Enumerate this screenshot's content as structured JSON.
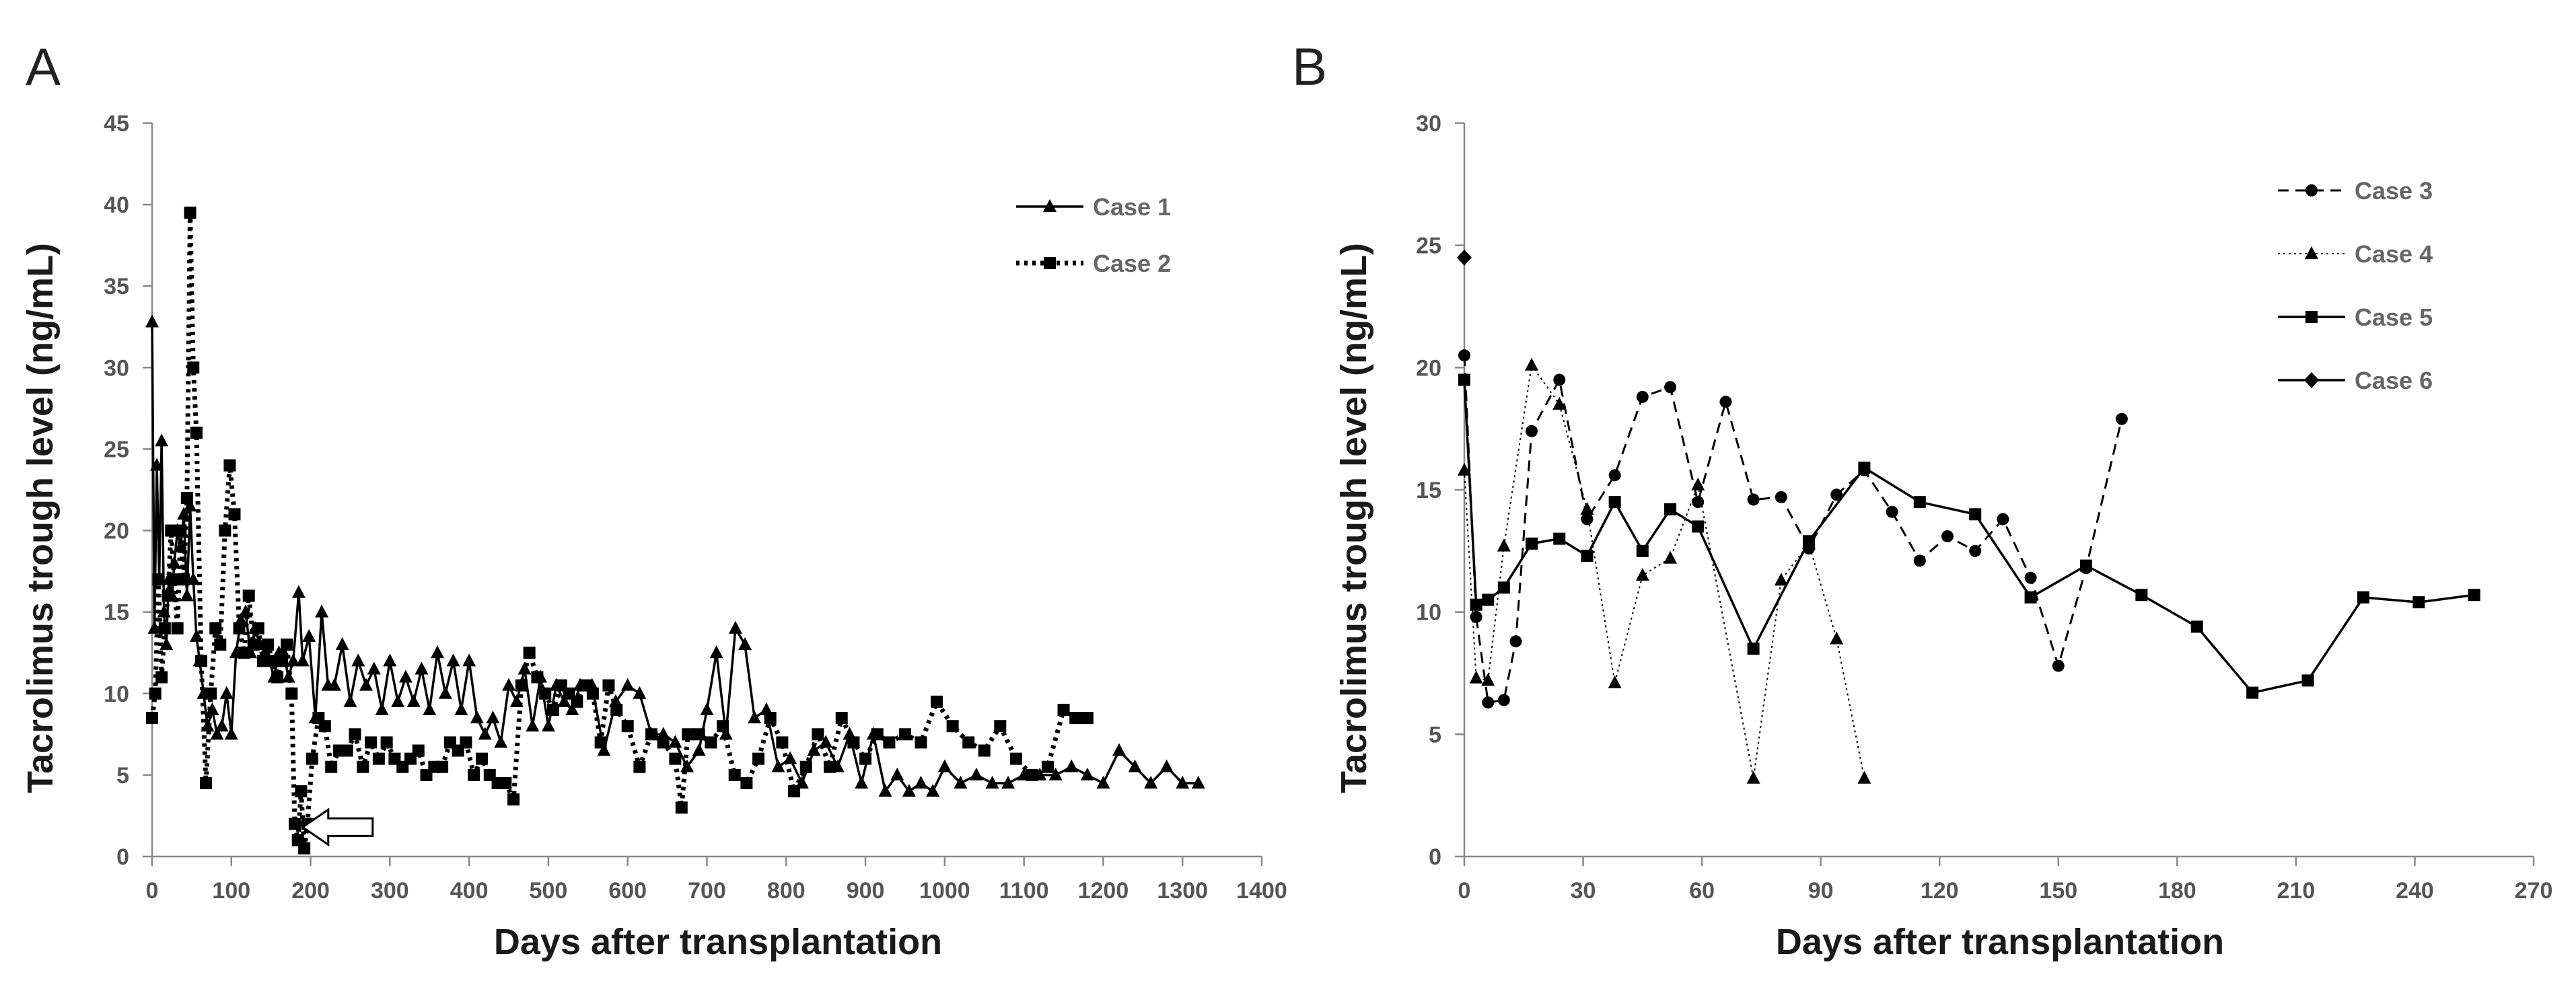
{
  "chart_data": [
    {
      "panel": "A",
      "type": "line",
      "xlabel": "Days after transplantation",
      "ylabel": "Tacrolimus trough level (ng/mL)",
      "xlim": [
        0,
        1400
      ],
      "ylim": [
        0,
        45
      ],
      "xticks": [
        0,
        100,
        200,
        300,
        400,
        500,
        600,
        700,
        800,
        900,
        1000,
        1100,
        1200,
        1300,
        1400
      ],
      "yticks": [
        0,
        5,
        10,
        15,
        20,
        25,
        30,
        35,
        40,
        45
      ],
      "legend_position": "top-right",
      "annotation": "arrow pointing to trough near day 185",
      "series": [
        {
          "name": "Case 1",
          "line": "solid",
          "marker": "triangle",
          "x": [
            0,
            3,
            6,
            9,
            12,
            15,
            18,
            21,
            25,
            28,
            32,
            36,
            40,
            44,
            48,
            52,
            56,
            60,
            65,
            70,
            76,
            82,
            88,
            94,
            100,
            106,
            112,
            118,
            124,
            130,
            136,
            142,
            148,
            154,
            160,
            166,
            172,
            178,
            185,
            190,
            198,
            206,
            214,
            222,
            230,
            240,
            250,
            260,
            270,
            280,
            290,
            300,
            310,
            320,
            330,
            340,
            350,
            360,
            370,
            380,
            390,
            400,
            410,
            420,
            430,
            440,
            450,
            460,
            470,
            480,
            490,
            500,
            510,
            520,
            530,
            540,
            555,
            570,
            585,
            600,
            615,
            630,
            645,
            660,
            675,
            690,
            700,
            712,
            724,
            736,
            748,
            760,
            775,
            790,
            805,
            820,
            835,
            850,
            865,
            880,
            895,
            910,
            925,
            940,
            955,
            970,
            985,
            1000,
            1020,
            1040,
            1060,
            1080,
            1100,
            1120,
            1140,
            1160,
            1180,
            1200,
            1220,
            1240,
            1260,
            1280,
            1300,
            1320
          ],
          "y": [
            32.8,
            14.0,
            24.0,
            17.0,
            25.5,
            15.0,
            13.0,
            17.0,
            16.0,
            18.0,
            20.0,
            19.0,
            21.0,
            16.0,
            21.5,
            17.0,
            13.5,
            12.0,
            10.0,
            8.0,
            9.0,
            7.5,
            8.0,
            10.0,
            7.5,
            12.5,
            14.5,
            15.0,
            12.5,
            14.0,
            13.0,
            12.5,
            12.0,
            11.0,
            12.5,
            12.5,
            11.0,
            12.0,
            16.2,
            12.0,
            13.5,
            8.5,
            15.0,
            10.5,
            10.5,
            13.0,
            9.5,
            12.0,
            10.5,
            11.5,
            9.0,
            12.0,
            9.5,
            11.0,
            9.5,
            11.5,
            9.0,
            12.5,
            10.0,
            12.0,
            9.0,
            12.0,
            8.5,
            7.5,
            8.5,
            7.0,
            10.5,
            9.5,
            11.5,
            8.0,
            11.0,
            8.0,
            10.5,
            9.5,
            9.0,
            10.5,
            10.5,
            6.5,
            9.5,
            10.5,
            10.0,
            7.5,
            7.5,
            7.0,
            5.5,
            6.5,
            9.0,
            12.5,
            7.5,
            14.0,
            13.0,
            8.5,
            9.0,
            5.5,
            6.0,
            4.5,
            6.5,
            7.0,
            5.5,
            7.5,
            4.5,
            7.5,
            4.0,
            5.0,
            4.0,
            4.5,
            4.0,
            5.5,
            4.5,
            5.0,
            4.5,
            4.5,
            5.0,
            5.0,
            5.0,
            5.5,
            5.0,
            4.5,
            6.5,
            5.5,
            4.5,
            5.5,
            4.5,
            4.5
          ]
        },
        {
          "name": "Case 2",
          "line": "dotted",
          "marker": "square",
          "x": [
            0,
            4,
            8,
            12,
            16,
            20,
            24,
            28,
            32,
            36,
            40,
            44,
            48,
            52,
            56,
            62,
            68,
            74,
            80,
            86,
            92,
            98,
            104,
            110,
            116,
            122,
            128,
            134,
            140,
            146,
            152,
            158,
            164,
            170,
            176,
            180,
            184,
            188,
            192,
            196,
            202,
            210,
            218,
            226,
            236,
            246,
            256,
            266,
            276,
            286,
            296,
            306,
            316,
            326,
            336,
            346,
            356,
            366,
            376,
            386,
            396,
            406,
            416,
            426,
            436,
            446,
            456,
            466,
            476,
            486,
            496,
            506,
            516,
            526,
            536,
            546,
            556,
            566,
            576,
            586,
            600,
            615,
            630,
            645,
            660,
            668,
            676,
            690,
            705,
            720,
            735,
            750,
            765,
            780,
            795,
            810,
            825,
            840,
            855,
            870,
            885,
            900,
            915,
            930,
            950,
            970,
            990,
            1010,
            1030,
            1050,
            1070,
            1090,
            1110,
            1130,
            1150,
            1165,
            1180
          ],
          "y": [
            8.5,
            10.0,
            17.0,
            11.0,
            14.0,
            16.0,
            20.0,
            17.0,
            14.0,
            20.0,
            17.0,
            22.0,
            39.5,
            30.0,
            26.0,
            12.0,
            4.5,
            10.0,
            14.0,
            13.0,
            20.0,
            24.0,
            21.0,
            14.0,
            12.5,
            16.0,
            13.0,
            14.0,
            12.0,
            13.0,
            12.0,
            11.0,
            12.0,
            13.0,
            10.0,
            2.0,
            1.0,
            4.0,
            0.5,
            2.0,
            6.0,
            8.5,
            8.0,
            5.5,
            6.5,
            6.5,
            7.5,
            5.5,
            7.0,
            6.0,
            7.0,
            6.0,
            5.5,
            6.0,
            6.5,
            5.0,
            5.5,
            5.5,
            7.0,
            6.5,
            7.0,
            5.0,
            6.0,
            5.0,
            4.5,
            4.5,
            3.5,
            10.5,
            12.5,
            11.0,
            10.0,
            9.0,
            10.5,
            10.0,
            9.5,
            10.5,
            10.0,
            7.0,
            10.5,
            9.0,
            8.0,
            5.5,
            7.5,
            7.0,
            6.0,
            3.0,
            7.5,
            7.5,
            7.0,
            8.0,
            5.0,
            4.5,
            6.0,
            8.5,
            7.0,
            4.0,
            5.5,
            7.5,
            5.5,
            8.5,
            7.0,
            6.0,
            7.5,
            7.0,
            7.5,
            7.0,
            9.5,
            8.0,
            7.0,
            6.5,
            8.0,
            6.0,
            5.0,
            5.5,
            9.0,
            8.5,
            8.5
          ]
        }
      ]
    },
    {
      "panel": "B",
      "type": "line",
      "xlabel": "Days after transplantation",
      "ylabel": "Tacrolimus trough level (ng/mL)",
      "xlim": [
        0,
        270
      ],
      "ylim": [
        0,
        30
      ],
      "xticks": [
        0,
        30,
        60,
        90,
        120,
        150,
        180,
        210,
        240,
        270
      ],
      "yticks": [
        0,
        5,
        10,
        15,
        20,
        25,
        30
      ],
      "legend_position": "top-right",
      "series": [
        {
          "name": "Case 3",
          "line": "dashed",
          "marker": "circle",
          "x": [
            0,
            3,
            6,
            10,
            13,
            17,
            24,
            31,
            38,
            45,
            52,
            59,
            66,
            73,
            80,
            87,
            94,
            101,
            108,
            115,
            122,
            129,
            136,
            143,
            150,
            157,
            166
          ],
          "y": [
            20.5,
            9.8,
            6.3,
            6.4,
            8.8,
            17.4,
            19.5,
            13.8,
            15.6,
            18.8,
            19.2,
            14.5,
            18.6,
            14.6,
            14.7,
            12.6,
            14.8,
            15.8,
            14.1,
            12.1,
            13.1,
            12.5,
            13.8,
            11.4,
            7.8,
            11.8,
            17.9
          ]
        },
        {
          "name": "Case 4",
          "line": "dotted",
          "marker": "triangle",
          "x": [
            0,
            3,
            6,
            10,
            17,
            24,
            31,
            38,
            45,
            52,
            59,
            73,
            80,
            87,
            94,
            101
          ],
          "y": [
            15.8,
            7.3,
            7.2,
            12.7,
            20.1,
            18.5,
            14.2,
            7.1,
            11.5,
            12.2,
            15.2,
            3.2,
            11.3,
            12.8,
            8.9,
            3.2
          ]
        },
        {
          "name": "Case 5",
          "line": "solid",
          "marker": "square",
          "x": [
            0,
            3,
            6,
            10,
            17,
            24,
            31,
            38,
            45,
            52,
            59,
            73,
            87,
            101,
            115,
            129,
            143,
            157,
            171,
            185,
            199,
            213,
            227,
            241,
            255
          ],
          "y": [
            19.5,
            10.3,
            10.5,
            11.0,
            12.8,
            13.0,
            12.3,
            14.5,
            12.5,
            14.2,
            13.5,
            8.5,
            12.9,
            15.9,
            14.5,
            14.0,
            10.6,
            11.9,
            10.7,
            9.4,
            6.7,
            7.2,
            10.6,
            10.4,
            10.7
          ]
        },
        {
          "name": "Case 6",
          "line": "solid",
          "marker": "diamond",
          "x": [
            0
          ],
          "y": [
            24.5
          ]
        }
      ]
    }
  ]
}
